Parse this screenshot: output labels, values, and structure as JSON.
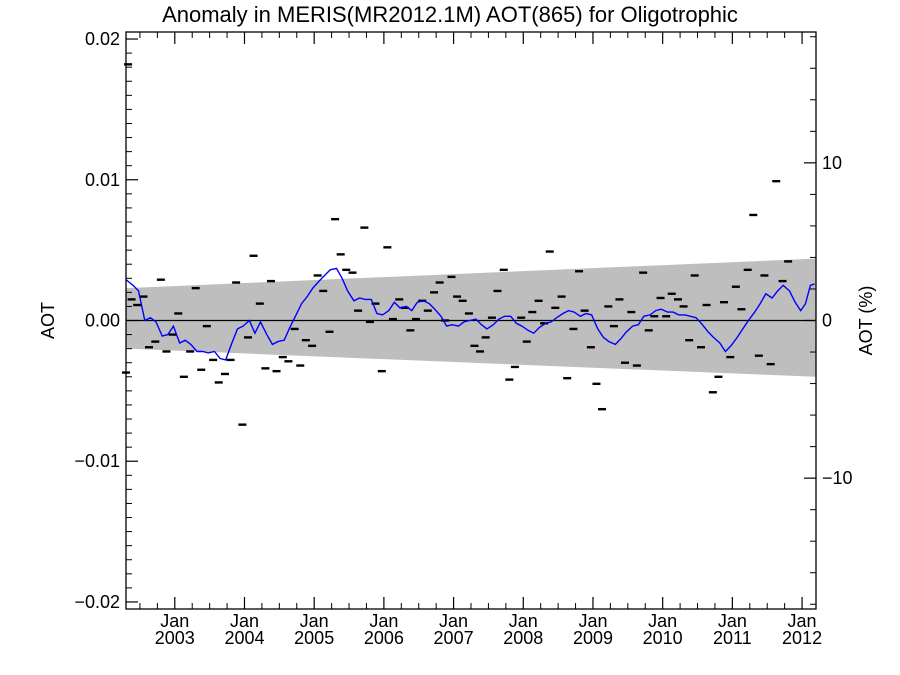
{
  "chart_data": {
    "type": "line",
    "title": "Anomaly in MERIS(MR2012.1M) AOT(865) for Oligotrophic",
    "ylabel": "AOT",
    "ylabel_right": "AOT (%)",
    "xlabel": "",
    "xlim": [
      2002.3,
      2012.2
    ],
    "ylim": [
      -0.0205,
      0.0205
    ],
    "ylim_right": [
      -18.3,
      18.3
    ],
    "x_ticks": [
      {
        "x": 2003.0,
        "top": "Jan",
        "bottom": "2003"
      },
      {
        "x": 2004.0,
        "top": "Jan",
        "bottom": "2004"
      },
      {
        "x": 2005.0,
        "top": "Jan",
        "bottom": "2005"
      },
      {
        "x": 2006.0,
        "top": "Jan",
        "bottom": "2006"
      },
      {
        "x": 2007.0,
        "top": "Jan",
        "bottom": "2007"
      },
      {
        "x": 2008.0,
        "top": "Jan",
        "bottom": "2008"
      },
      {
        "x": 2009.0,
        "top": "Jan",
        "bottom": "2009"
      },
      {
        "x": 2010.0,
        "top": "Jan",
        "bottom": "2010"
      },
      {
        "x": 2011.0,
        "top": "Jan",
        "bottom": "2011"
      },
      {
        "x": 2012.0,
        "top": "Jan",
        "bottom": "2012"
      }
    ],
    "y_ticks_left": [
      {
        "v": 0.02,
        "label": "0.02"
      },
      {
        "v": 0.01,
        "label": "0.01"
      },
      {
        "v": 0.0,
        "label": "0.00"
      },
      {
        "v": -0.01,
        "label": "−0.01"
      },
      {
        "v": -0.02,
        "label": "−0.02"
      }
    ],
    "y_ticks_right": [
      {
        "v": 10,
        "label": "10"
      },
      {
        "v": 0,
        "label": "0"
      },
      {
        "v": -10,
        "label": "−10"
      }
    ],
    "band": {
      "color": "#bebebe",
      "x": [
        2002.3,
        2012.2
      ],
      "upper": [
        0.0023,
        0.0044
      ],
      "lower": [
        -0.002,
        -0.004
      ]
    },
    "zero_line": 0.0,
    "colors": {
      "smoothed": "#0000ff",
      "monthly": "#000000",
      "band": "#bebebe"
    },
    "series": [
      {
        "style": "dash-markers",
        "points": [
          [
            2002.3,
            -0.0037
          ],
          [
            2002.33,
            0.0182
          ],
          [
            2002.38,
            0.0015
          ],
          [
            2002.46,
            0.0011
          ],
          [
            2002.55,
            0.0017
          ],
          [
            2002.63,
            -0.0019
          ],
          [
            2002.72,
            -0.0015
          ],
          [
            2002.8,
            0.0029
          ],
          [
            2002.88,
            -0.0022
          ],
          [
            2002.97,
            -0.001
          ],
          [
            2003.05,
            0.0005
          ],
          [
            2003.13,
            -0.004
          ],
          [
            2003.22,
            -0.0022
          ],
          [
            2003.3,
            0.0023
          ],
          [
            2003.38,
            -0.0035
          ],
          [
            2003.46,
            -0.0004
          ],
          [
            2003.55,
            -0.0028
          ],
          [
            2003.63,
            -0.0044
          ],
          [
            2003.72,
            -0.0038
          ],
          [
            2003.8,
            -0.0028
          ],
          [
            2003.88,
            0.0027
          ],
          [
            2003.97,
            -0.0074
          ],
          [
            2004.05,
            -0.0012
          ],
          [
            2004.13,
            0.0046
          ],
          [
            2004.22,
            0.0012
          ],
          [
            2004.3,
            -0.0034
          ],
          [
            2004.38,
            0.0028
          ],
          [
            2004.46,
            -0.0036
          ],
          [
            2004.55,
            -0.0026
          ],
          [
            2004.63,
            -0.0029
          ],
          [
            2004.72,
            -0.0006
          ],
          [
            2004.8,
            -0.0032
          ],
          [
            2004.88,
            -0.0014
          ],
          [
            2004.97,
            -0.0018
          ],
          [
            2005.05,
            0.0032
          ],
          [
            2005.13,
            0.0021
          ],
          [
            2005.22,
            -0.0008
          ],
          [
            2005.3,
            0.0072
          ],
          [
            2005.38,
            0.0047
          ],
          [
            2005.46,
            0.0036
          ],
          [
            2005.55,
            0.0034
          ],
          [
            2005.63,
            0.0007
          ],
          [
            2005.72,
            0.0066
          ],
          [
            2005.8,
            -0.0001
          ],
          [
            2005.88,
            0.0012
          ],
          [
            2005.97,
            -0.0036
          ],
          [
            2006.05,
            0.0052
          ],
          [
            2006.13,
            0.0001
          ],
          [
            2006.22,
            0.0015
          ],
          [
            2006.3,
            0.0009
          ],
          [
            2006.38,
            -0.0007
          ],
          [
            2006.46,
            0.0001
          ],
          [
            2006.55,
            0.0014
          ],
          [
            2006.63,
            0.0007
          ],
          [
            2006.72,
            0.002
          ],
          [
            2006.8,
            0.0027
          ],
          [
            2006.88,
            0.0
          ],
          [
            2006.97,
            0.0031
          ],
          [
            2007.05,
            0.0017
          ],
          [
            2007.13,
            0.0014
          ],
          [
            2007.22,
            0.0005
          ],
          [
            2007.3,
            -0.0018
          ],
          [
            2007.38,
            -0.0022
          ],
          [
            2007.46,
            -0.0012
          ],
          [
            2007.55,
            0.0002
          ],
          [
            2007.63,
            0.0021
          ],
          [
            2007.72,
            0.0036
          ],
          [
            2007.8,
            -0.0042
          ],
          [
            2007.88,
            -0.0033
          ],
          [
            2007.97,
            0.0002
          ],
          [
            2008.05,
            -0.0015
          ],
          [
            2008.13,
            0.0006
          ],
          [
            2008.22,
            0.0014
          ],
          [
            2008.3,
            -0.0002
          ],
          [
            2008.38,
            0.0049
          ],
          [
            2008.46,
            0.0009
          ],
          [
            2008.55,
            0.0017
          ],
          [
            2008.63,
            -0.0041
          ],
          [
            2008.72,
            -0.0006
          ],
          [
            2008.8,
            0.0035
          ],
          [
            2008.88,
            0.0007
          ],
          [
            2008.97,
            -0.0019
          ],
          [
            2009.05,
            -0.0045
          ],
          [
            2009.13,
            -0.0063
          ],
          [
            2009.22,
            0.001
          ],
          [
            2009.3,
            -0.0004
          ],
          [
            2009.38,
            0.0015
          ],
          [
            2009.46,
            -0.003
          ],
          [
            2009.55,
            0.0006
          ],
          [
            2009.63,
            -0.0032
          ],
          [
            2009.72,
            0.0034
          ],
          [
            2009.8,
            -0.0007
          ],
          [
            2009.88,
            0.0003
          ],
          [
            2009.97,
            0.0016
          ],
          [
            2010.05,
            0.0003
          ],
          [
            2010.13,
            0.0019
          ],
          [
            2010.22,
            0.0015
          ],
          [
            2010.3,
            0.001
          ],
          [
            2010.38,
            -0.0014
          ],
          [
            2010.46,
            0.0032
          ],
          [
            2010.55,
            -0.0019
          ],
          [
            2010.63,
            0.0011
          ],
          [
            2010.72,
            -0.0051
          ],
          [
            2010.8,
            -0.004
          ],
          [
            2010.88,
            0.0013
          ],
          [
            2010.97,
            -0.0026
          ],
          [
            2011.05,
            0.0024
          ],
          [
            2011.13,
            0.0008
          ],
          [
            2011.22,
            0.0036
          ],
          [
            2011.3,
            0.0075
          ],
          [
            2011.38,
            -0.0025
          ],
          [
            2011.46,
            0.0032
          ],
          [
            2011.55,
            -0.0031
          ],
          [
            2011.63,
            0.0099
          ],
          [
            2011.72,
            0.0028
          ],
          [
            2011.8,
            0.0042
          ]
        ]
      },
      {
        "style": "line",
        "points": [
          [
            2002.3,
            0.0029
          ],
          [
            2002.4,
            0.0025
          ],
          [
            2002.48,
            0.0021
          ],
          [
            2002.57,
            0.0
          ],
          [
            2002.65,
            0.0002
          ],
          [
            2002.73,
            -0.0001
          ],
          [
            2002.82,
            -0.0011
          ],
          [
            2002.9,
            -0.001
          ],
          [
            2002.98,
            -0.0004
          ],
          [
            2003.07,
            -0.0016
          ],
          [
            2003.15,
            -0.0014
          ],
          [
            2003.23,
            -0.0017
          ],
          [
            2003.32,
            -0.0022
          ],
          [
            2003.4,
            -0.0022
          ],
          [
            2003.48,
            -0.0023
          ],
          [
            2003.57,
            -0.0022
          ],
          [
            2003.65,
            -0.0027
          ],
          [
            2003.73,
            -0.0028
          ],
          [
            2003.82,
            -0.0016
          ],
          [
            2003.9,
            -0.0006
          ],
          [
            2003.98,
            -0.0004
          ],
          [
            2004.07,
            0.0
          ],
          [
            2004.15,
            -0.0009
          ],
          [
            2004.23,
            -0.0001
          ],
          [
            2004.32,
            -0.001
          ],
          [
            2004.4,
            -0.0017
          ],
          [
            2004.48,
            -0.0015
          ],
          [
            2004.57,
            -0.0014
          ],
          [
            2004.65,
            -0.0005
          ],
          [
            2004.73,
            0.0003
          ],
          [
            2004.82,
            0.0012
          ],
          [
            2004.9,
            0.0017
          ],
          [
            2004.98,
            0.0023
          ],
          [
            2005.07,
            0.0028
          ],
          [
            2005.15,
            0.0032
          ],
          [
            2005.23,
            0.0036
          ],
          [
            2005.32,
            0.0037
          ],
          [
            2005.4,
            0.003
          ],
          [
            2005.48,
            0.0021
          ],
          [
            2005.57,
            0.0014
          ],
          [
            2005.65,
            0.0016
          ],
          [
            2005.73,
            0.0015
          ],
          [
            2005.82,
            0.0015
          ],
          [
            2005.9,
            0.0005
          ],
          [
            2005.98,
            0.0004
          ],
          [
            2006.07,
            0.0007
          ],
          [
            2006.15,
            0.0013
          ],
          [
            2006.23,
            0.0009
          ],
          [
            2006.32,
            0.001
          ],
          [
            2006.4,
            0.0007
          ],
          [
            2006.48,
            0.0013
          ],
          [
            2006.57,
            0.0014
          ],
          [
            2006.65,
            0.0012
          ],
          [
            2006.73,
            0.0008
          ],
          [
            2006.82,
            0.0003
          ],
          [
            2006.9,
            -0.0004
          ],
          [
            2006.98,
            -0.0003
          ],
          [
            2007.07,
            -0.0004
          ],
          [
            2007.15,
            -0.0001
          ],
          [
            2007.23,
            0.0
          ],
          [
            2007.32,
            0.0001
          ],
          [
            2007.4,
            -0.0003
          ],
          [
            2007.48,
            -0.0006
          ],
          [
            2007.57,
            -0.0003
          ],
          [
            2007.65,
            0.0001
          ],
          [
            2007.73,
            0.0003
          ],
          [
            2007.82,
            0.0003
          ],
          [
            2007.9,
            -0.0002
          ],
          [
            2007.98,
            -0.0004
          ],
          [
            2008.07,
            -0.0007
          ],
          [
            2008.15,
            -0.0009
          ],
          [
            2008.23,
            -0.0005
          ],
          [
            2008.32,
            -0.0002
          ],
          [
            2008.4,
            -0.0001
          ],
          [
            2008.48,
            0.0002
          ],
          [
            2008.57,
            0.0005
          ],
          [
            2008.65,
            0.0007
          ],
          [
            2008.73,
            0.0006
          ],
          [
            2008.82,
            0.0003
          ],
          [
            2008.9,
            0.0005
          ],
          [
            2008.98,
            0.0004
          ],
          [
            2009.07,
            -0.0006
          ],
          [
            2009.15,
            -0.0012
          ],
          [
            2009.23,
            -0.0015
          ],
          [
            2009.32,
            -0.0017
          ],
          [
            2009.4,
            -0.0013
          ],
          [
            2009.48,
            -0.0008
          ],
          [
            2009.57,
            -0.0004
          ],
          [
            2009.65,
            -0.0003
          ],
          [
            2009.73,
            0.0003
          ],
          [
            2009.82,
            0.0004
          ],
          [
            2009.9,
            0.0007
          ],
          [
            2009.98,
            0.0008
          ],
          [
            2010.07,
            0.0006
          ],
          [
            2010.15,
            0.0006
          ],
          [
            2010.23,
            0.0004
          ],
          [
            2010.32,
            0.0004
          ],
          [
            2010.4,
            0.0003
          ],
          [
            2010.48,
            0.0002
          ],
          [
            2010.57,
            -0.0003
          ],
          [
            2010.65,
            -0.0008
          ],
          [
            2010.73,
            -0.0012
          ],
          [
            2010.82,
            -0.0016
          ],
          [
            2010.9,
            -0.0022
          ],
          [
            2010.98,
            -0.0018
          ],
          [
            2011.07,
            -0.0012
          ],
          [
            2011.15,
            -0.0006
          ],
          [
            2011.23,
            0.0
          ],
          [
            2011.32,
            0.0006
          ],
          [
            2011.4,
            0.0012
          ],
          [
            2011.48,
            0.0019
          ],
          [
            2011.57,
            0.0016
          ],
          [
            2011.65,
            0.0021
          ],
          [
            2011.73,
            0.0025
          ],
          [
            2011.82,
            0.0021
          ],
          [
            2011.9,
            0.0013
          ],
          [
            2011.98,
            0.0007
          ],
          [
            2012.05,
            0.0012
          ],
          [
            2012.12,
            0.0025
          ],
          [
            2012.18,
            0.0026
          ]
        ]
      }
    ]
  }
}
